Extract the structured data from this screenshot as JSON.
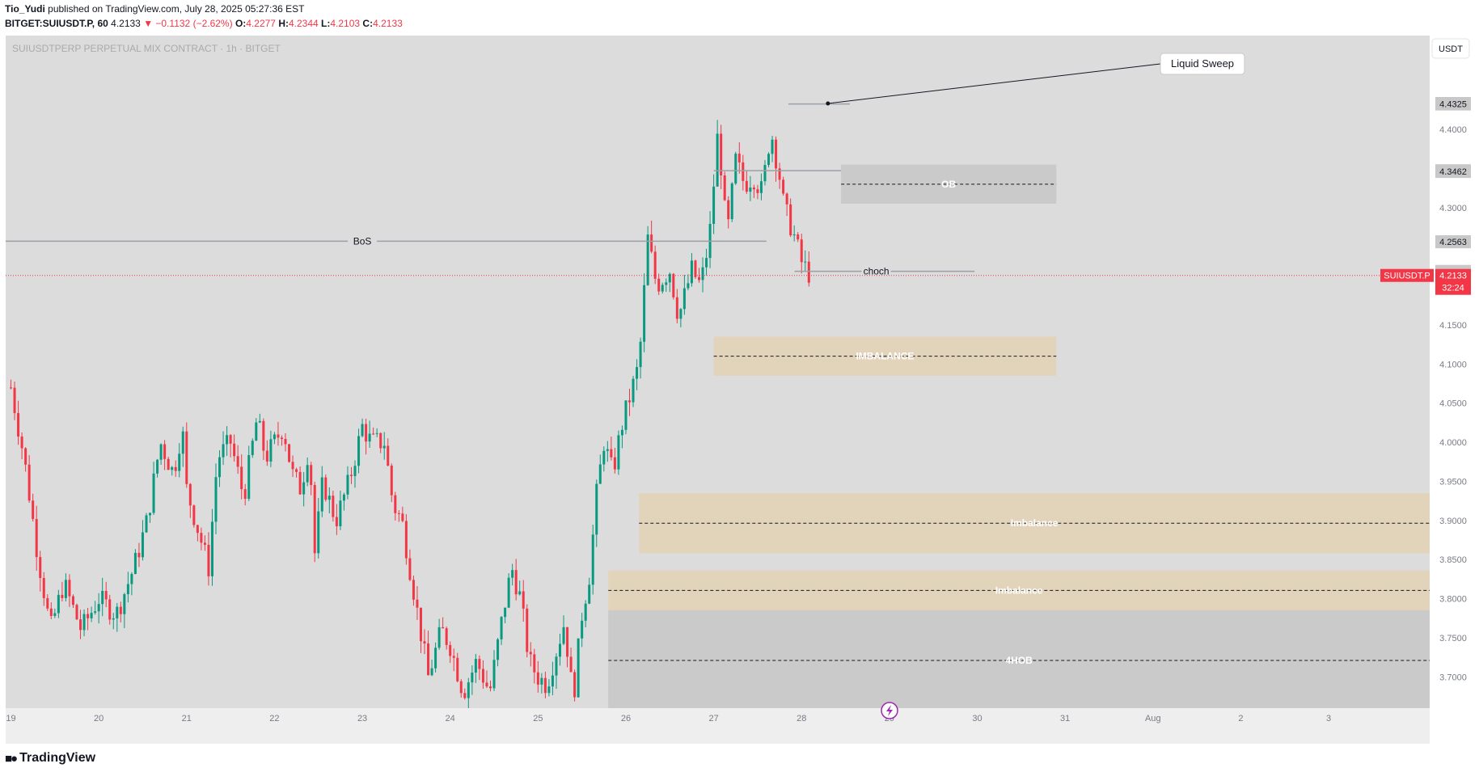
{
  "header": {
    "author": "Tio_Yudi",
    "published": "published on TradingView.com, July 28, 2025 05:27:36 EST",
    "symbol": "BITGET:SUIUSDT.P, 60",
    "last": "4.2133",
    "change": "▼ −0.1132 (−2.62%)",
    "o_label": "O:",
    "o": "4.2277",
    "h_label": "H:",
    "h": "4.2344",
    "l_label": "L:",
    "l": "4.2103",
    "c_label": "C:",
    "c": "4.2133"
  },
  "chart_watermark": "SUIUSDTPERP PERPETUAL MIX CONTRACT · 1h · BITGET",
  "currency_button": "USDT",
  "footer_logo": "TradingView",
  "colors": {
    "up": "#089981",
    "down": "#f23645",
    "bg": "#dcdcdc",
    "zone": "#e2d2b8",
    "ob": "#c8c8c8"
  },
  "chart_data": {
    "type": "candlestick",
    "timeframe": "1h",
    "ylim": [
      3.66,
      4.52
    ],
    "y_ticks": [
      "4.4000",
      "4.3000",
      "4.1500",
      "4.1000",
      "4.0500",
      "4.0000",
      "3.9500",
      "3.9000",
      "3.8500",
      "3.8000",
      "3.7500",
      "3.7000"
    ],
    "x_ticks": [
      "19",
      "20",
      "21",
      "22",
      "23",
      "24",
      "25",
      "26",
      "27",
      "28",
      "29",
      "30",
      "31",
      "Aug",
      "2",
      "3"
    ],
    "x_range_days": [
      18.94,
      35.15
    ],
    "price_labels": [
      "4.4332",
      "4.4325",
      "4.3472",
      "4.3462",
      "4.2564",
      "4.2563",
      "4.2185",
      "4.2170"
    ],
    "current": {
      "symbol": "SUIUSDT.P",
      "price": "4.2133",
      "countdown": "32:24"
    },
    "candles_keyframes": [
      [
        19.0,
        4.07
      ],
      [
        19.15,
        3.98
      ],
      [
        19.3,
        3.86
      ],
      [
        19.45,
        3.76
      ],
      [
        19.6,
        3.82
      ],
      [
        19.8,
        3.76
      ],
      [
        20.0,
        3.8
      ],
      [
        20.2,
        3.78
      ],
      [
        20.4,
        3.84
      ],
      [
        20.55,
        3.9
      ],
      [
        20.7,
        4.0
      ],
      [
        20.85,
        3.96
      ],
      [
        20.95,
        4.02
      ],
      [
        21.0,
        3.94
      ],
      [
        21.15,
        3.88
      ],
      [
        21.25,
        3.84
      ],
      [
        21.35,
        3.98
      ],
      [
        21.5,
        4.0
      ],
      [
        21.65,
        3.93
      ],
      [
        21.8,
        4.03
      ],
      [
        21.9,
        3.98
      ],
      [
        22.1,
        4.02
      ],
      [
        22.2,
        3.96
      ],
      [
        22.3,
        3.94
      ],
      [
        22.4,
        4.0
      ],
      [
        22.45,
        3.85
      ],
      [
        22.55,
        3.95
      ],
      [
        22.7,
        3.9
      ],
      [
        22.85,
        3.95
      ],
      [
        23.0,
        4.02
      ],
      [
        23.1,
        4.0
      ],
      [
        23.25,
        4.0
      ],
      [
        23.35,
        3.92
      ],
      [
        23.45,
        3.9
      ],
      [
        23.6,
        3.8
      ],
      [
        23.75,
        3.7
      ],
      [
        23.9,
        3.76
      ],
      [
        24.0,
        3.74
      ],
      [
        24.15,
        3.68
      ],
      [
        24.3,
        3.72
      ],
      [
        24.45,
        3.68
      ],
      [
        24.6,
        3.78
      ],
      [
        24.7,
        3.84
      ],
      [
        24.8,
        3.8
      ],
      [
        24.9,
        3.72
      ],
      [
        25.0,
        3.7
      ],
      [
        25.1,
        3.69
      ],
      [
        25.2,
        3.73
      ],
      [
        25.3,
        3.77
      ],
      [
        25.4,
        3.67
      ],
      [
        25.5,
        3.78
      ],
      [
        25.6,
        3.84
      ],
      [
        25.65,
        3.92
      ],
      [
        25.75,
        4.0
      ],
      [
        25.85,
        3.96
      ],
      [
        25.95,
        4.02
      ],
      [
        26.05,
        4.06
      ],
      [
        26.15,
        4.1
      ],
      [
        26.25,
        4.26
      ],
      [
        26.35,
        4.2
      ],
      [
        26.5,
        4.22
      ],
      [
        26.6,
        4.16
      ],
      [
        26.75,
        4.22
      ],
      [
        26.85,
        4.2
      ],
      [
        26.95,
        4.26
      ],
      [
        27.05,
        4.4
      ],
      [
        27.15,
        4.26
      ],
      [
        27.25,
        4.36
      ],
      [
        27.35,
        4.33
      ],
      [
        27.45,
        4.34
      ],
      [
        27.55,
        4.32
      ],
      [
        27.65,
        4.4
      ],
      [
        27.75,
        4.34
      ],
      [
        27.8,
        4.3
      ],
      [
        27.9,
        4.27
      ],
      [
        28.0,
        4.23
      ],
      [
        28.1,
        4.2133
      ]
    ],
    "annotations": [
      {
        "type": "label",
        "text": "Liquid Sweep",
        "x": 28.3,
        "y": 4.4332
      },
      {
        "type": "hline",
        "text": "BoS",
        "y": 4.257
      },
      {
        "type": "hline",
        "text": "choch",
        "y": 4.2185
      },
      {
        "type": "hline",
        "text": "",
        "y": 4.3472
      },
      {
        "type": "hline",
        "text": "",
        "y": 4.4325
      },
      {
        "type": "zone",
        "text": "OB",
        "y_top": 4.355,
        "y_bottom": 4.305
      },
      {
        "type": "zone",
        "text": "IMBALANCE",
        "y_top": 4.135,
        "y_bottom": 4.085
      },
      {
        "type": "zone",
        "text": "Imbalance",
        "y_top": 3.935,
        "y_bottom": 3.858
      },
      {
        "type": "zone",
        "text": "Imbalance",
        "y_top": 3.836,
        "y_bottom": 3.785
      },
      {
        "type": "zone",
        "text": "4HOB",
        "y_top": 3.785,
        "y_bottom": 3.657
      }
    ]
  }
}
